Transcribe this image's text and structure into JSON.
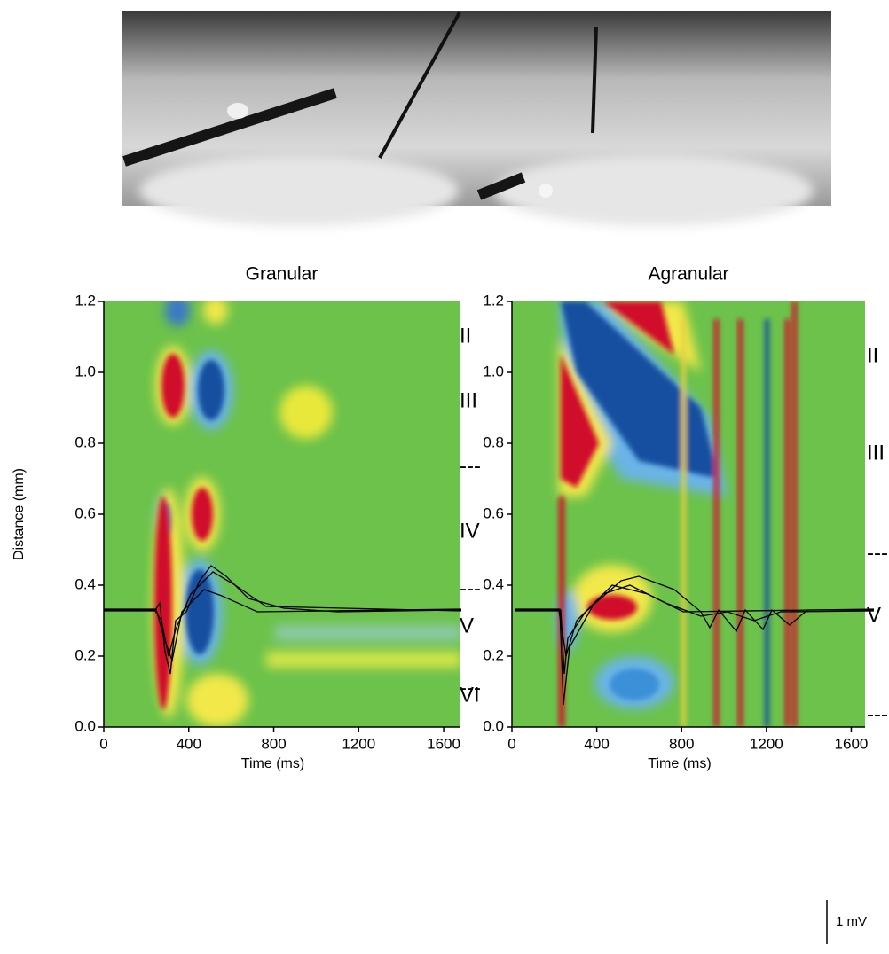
{
  "figure": {
    "scale_bar": "1 mV"
  },
  "chart_data": [
    {
      "type": "heatmap",
      "title": "Granular",
      "x_label": "Time (ms)",
      "y_label": "Distance (mm)",
      "xlim": [
        0,
        1675
      ],
      "xticks": [
        0,
        400,
        800,
        1200,
        1600
      ],
      "ylim": [
        0,
        1.2
      ],
      "yticks": [
        {
          "value": 0,
          "label": "0.0"
        },
        0.2,
        0.4,
        0.6,
        0.8,
        {
          "value": 1,
          "label": "1.0"
        },
        1.2
      ],
      "layers": [
        "II",
        "III",
        "---",
        "IV",
        "---",
        "V",
        "---",
        "VI"
      ]
    },
    {
      "type": "heatmap",
      "title": "Agranular",
      "x_label": "Time (ms)",
      "xlim": [
        0,
        1665
      ],
      "xticks": [
        0,
        400,
        800,
        1200,
        1600
      ],
      "ylim": [
        0,
        1.2
      ],
      "yticks": [
        {
          "value": 0,
          "label": "0.0"
        },
        0.2,
        0.4,
        0.6,
        0.8,
        {
          "value": 1,
          "label": "1.0"
        },
        1.2
      ],
      "layers": [
        "II",
        "III",
        "---",
        "V",
        "---"
      ]
    }
  ]
}
